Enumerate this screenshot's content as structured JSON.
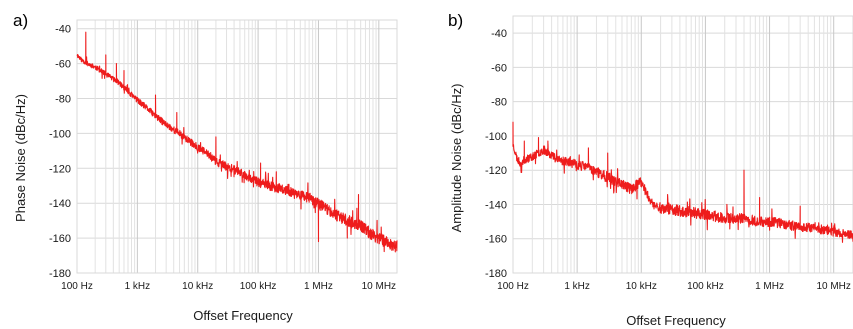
{
  "chart_data": [
    {
      "panel_label": "a)",
      "type": "line",
      "xlabel": "Offset Frequency",
      "ylabel": "Phase Noise (dBc/Hz)",
      "x_scale": "log",
      "xlim": [
        100,
        20000000
      ],
      "ylim": [
        -180,
        -35
      ],
      "yticks": [
        -40,
        -60,
        -80,
        -100,
        -120,
        -140,
        -160,
        -180
      ],
      "xticks": [
        {
          "value": 100,
          "label": "100 Hz"
        },
        {
          "value": 1000,
          "label": "1 kHz"
        },
        {
          "value": 10000,
          "label": "10 kHz"
        },
        {
          "value": 100000,
          "label": "100 kHz"
        },
        {
          "value": 1000000,
          "label": "1 MHz"
        },
        {
          "value": 10000000,
          "label": "10 MHz"
        }
      ],
      "grid": true,
      "series_color": "#ee1c1c",
      "x": [
        100,
        120,
        150,
        200,
        300,
        500,
        700,
        1000,
        1500,
        2000,
        3000,
        5000,
        7000,
        10000,
        15000,
        20000,
        30000,
        50000,
        70000,
        100000,
        150000,
        200000,
        300000,
        500000,
        700000,
        1000000,
        1500000,
        2000000,
        3000000,
        5000000,
        7000000,
        10000000,
        15000000,
        20000000
      ],
      "y": [
        -55,
        -58,
        -60,
        -62,
        -66,
        -71,
        -76,
        -81,
        -86,
        -90,
        -95,
        -100,
        -104,
        -108,
        -112,
        -116,
        -119,
        -122,
        -125,
        -128,
        -130,
        -131,
        -133,
        -135,
        -137,
        -140,
        -144,
        -147,
        -150,
        -153,
        -157,
        -160,
        -163,
        -165
      ],
      "spikes": [
        {
          "x": 140,
          "y": -42
        },
        {
          "x": 300,
          "y": -55
        },
        {
          "x": 450,
          "y": -60
        },
        {
          "x": 600,
          "y": -64
        },
        {
          "x": 2000,
          "y": -78
        },
        {
          "x": 4500,
          "y": -88
        },
        {
          "x": 20000,
          "y": -102
        },
        {
          "x": 90000,
          "y": -125
        },
        {
          "x": 110000,
          "y": -117
        },
        {
          "x": 200000,
          "y": -122
        },
        {
          "x": 1000000,
          "y": -162
        },
        {
          "x": 3000000,
          "y": -160
        },
        {
          "x": 4600000,
          "y": -135
        }
      ]
    },
    {
      "panel_label": "b)",
      "type": "line",
      "xlabel": "Offset Frequency",
      "ylabel": "Amplitude Noise (dBc/Hz)",
      "x_scale": "log",
      "xlim": [
        100,
        20000000
      ],
      "ylim": [
        -180,
        -30
      ],
      "yticks": [
        -40,
        -60,
        -80,
        -100,
        -120,
        -140,
        -160,
        -180
      ],
      "xticks": [
        {
          "value": 100,
          "label": "100 Hz"
        },
        {
          "value": 1000,
          "label": "1 kHz"
        },
        {
          "value": 10000,
          "label": "10 kHz"
        },
        {
          "value": 100000,
          "label": "100 kHz"
        },
        {
          "value": 1000000,
          "label": "1 MHz"
        },
        {
          "value": 10000000,
          "label": "10 MHz"
        }
      ],
      "grid": true,
      "series_color": "#ee1c1c",
      "x": [
        100,
        115,
        130,
        150,
        200,
        250,
        300,
        400,
        500,
        700,
        1000,
        1500,
        2000,
        3000,
        5000,
        7000,
        9000,
        10000,
        12000,
        15000,
        20000,
        30000,
        50000,
        70000,
        100000,
        150000,
        200000,
        300000,
        500000,
        700000,
        1000000,
        1500000,
        2000000,
        3000000,
        5000000,
        7000000,
        10000000,
        15000000,
        20000000
      ],
      "y": [
        -105,
        -113,
        -116,
        -114,
        -112,
        -110,
        -108,
        -111,
        -114,
        -115,
        -117,
        -118,
        -121,
        -124,
        -128,
        -131,
        -128,
        -127,
        -133,
        -140,
        -142,
        -143,
        -144,
        -145,
        -146,
        -147,
        -148,
        -148,
        -149,
        -150,
        -150,
        -151,
        -152,
        -153,
        -154,
        -155,
        -156,
        -157,
        -158
      ],
      "spikes": [
        {
          "x": 100,
          "y": -92
        },
        {
          "x": 150,
          "y": -103
        },
        {
          "x": 250,
          "y": -101
        },
        {
          "x": 350,
          "y": -103
        },
        {
          "x": 1500,
          "y": -107
        },
        {
          "x": 3000,
          "y": -110
        },
        {
          "x": 10000,
          "y": -126
        },
        {
          "x": 400000,
          "y": -120
        },
        {
          "x": 700000,
          "y": -136
        },
        {
          "x": 1000000,
          "y": -155
        },
        {
          "x": 3000000,
          "y": -141
        },
        {
          "x": 8000000,
          "y": -152
        }
      ]
    }
  ]
}
